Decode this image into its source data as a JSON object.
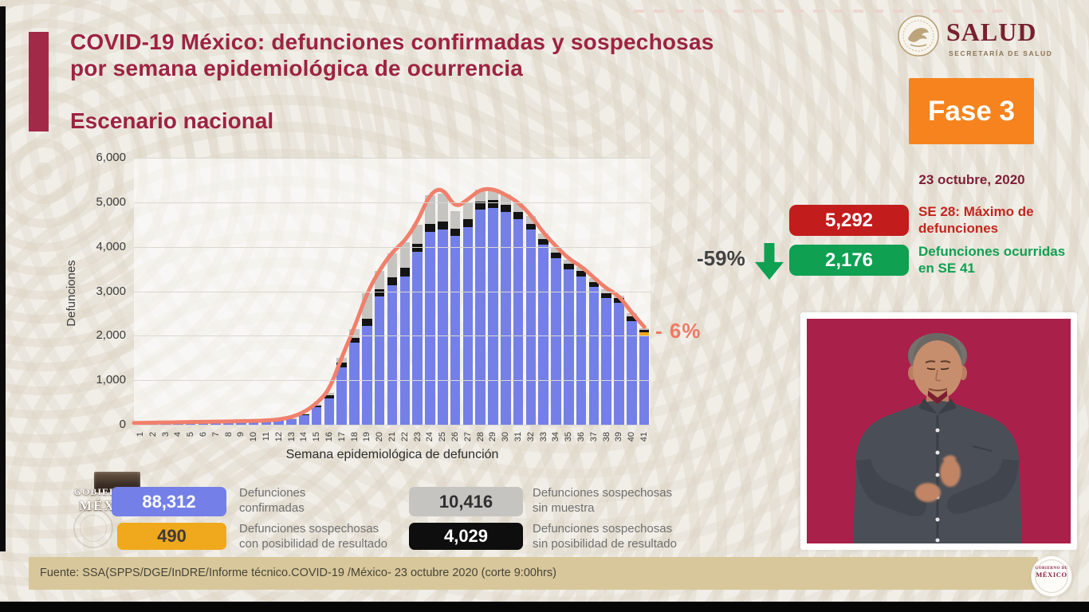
{
  "title": {
    "line1": "COVID-19 México: defunciones confirmadas y sospechosas",
    "line2": "por semana epidemiológica de ocurrencia",
    "section": "Escenario nacional"
  },
  "salud": {
    "wordmark": "SALUD",
    "sublabel": "SECRETARÍA DE SALUD"
  },
  "phase": {
    "label": "Fase 3",
    "date": "23 octubre, 2020"
  },
  "stats": {
    "max": {
      "value": "5,292",
      "label": "SE 28: Máximo de defunciones"
    },
    "current": {
      "value": "2,176",
      "label": "Defunciones ocurridas en SE 41"
    },
    "delta": "-59%",
    "annotation": "- 6%"
  },
  "chart_data": {
    "type": "stacked-bar+line",
    "title": "Defunciones confirmadas y sospechosas por semana epidemiológica de ocurrencia",
    "xlabel": "Semana epidemiológica de defunción",
    "ylabel": "Defunciones",
    "ylim": [
      0,
      6000
    ],
    "yticks": [
      "0",
      "1,000",
      "2,000",
      "3,000",
      "4,000",
      "5,000",
      "6,000"
    ],
    "grid": "horizontal",
    "legend_position": "bottom",
    "categories": [
      1,
      2,
      3,
      4,
      5,
      6,
      7,
      8,
      9,
      10,
      11,
      12,
      13,
      14,
      15,
      16,
      17,
      18,
      19,
      20,
      21,
      22,
      23,
      24,
      25,
      26,
      27,
      28,
      29,
      30,
      31,
      32,
      33,
      34,
      35,
      36,
      37,
      38,
      39,
      40,
      41
    ],
    "series": [
      {
        "name": "Defunciones confirmadas",
        "color": "#7480e8",
        "values": [
          30,
          35,
          40,
          45,
          50,
          55,
          55,
          60,
          65,
          70,
          75,
          85,
          130,
          230,
          400,
          600,
          1290,
          1840,
          2230,
          2890,
          3140,
          3330,
          3890,
          4330,
          4380,
          4240,
          4440,
          4830,
          4880,
          4780,
          4630,
          4380,
          4040,
          3740,
          3490,
          3340,
          3090,
          2840,
          2740,
          2330,
          2000
        ]
      },
      {
        "name": "Defunciones sospechosas con posibilidad de resultado",
        "color": "#f0a81c",
        "values": [
          0,
          0,
          0,
          0,
          0,
          0,
          0,
          0,
          0,
          0,
          0,
          0,
          0,
          0,
          0,
          0,
          0,
          0,
          0,
          0,
          0,
          0,
          0,
          0,
          0,
          0,
          0,
          0,
          0,
          0,
          0,
          0,
          0,
          0,
          0,
          0,
          0,
          0,
          0,
          0,
          76
        ]
      },
      {
        "name": "Defunciones sospechosas sin posibilidad de resultado",
        "color": "#141414",
        "values": [
          0,
          0,
          0,
          0,
          0,
          0,
          0,
          0,
          0,
          0,
          0,
          0,
          5,
          10,
          25,
          60,
          110,
          110,
          160,
          150,
          180,
          190,
          180,
          190,
          180,
          170,
          180,
          190,
          170,
          170,
          160,
          140,
          130,
          130,
          120,
          120,
          120,
          110,
          100,
          100,
          60
        ]
      },
      {
        "name": "Defunciones sospechosas sin muestra",
        "color": "#c6c4c1",
        "values": [
          5,
          5,
          5,
          5,
          5,
          5,
          10,
          10,
          10,
          10,
          15,
          15,
          15,
          20,
          35,
          60,
          100,
          200,
          560,
          410,
          530,
          580,
          430,
          630,
          640,
          390,
          380,
          272,
          230,
          230,
          210,
          180,
          130,
          130,
          90,
          90,
          90,
          100,
          60,
          70,
          40
        ]
      }
    ],
    "line": {
      "name": "Total de defunciones (curva suavizada)",
      "color": "#f0806c",
      "values": [
        40,
        45,
        50,
        55,
        60,
        65,
        70,
        75,
        80,
        85,
        95,
        115,
        170,
        280,
        480,
        780,
        1520,
        2190,
        2960,
        3480,
        3880,
        4130,
        4560,
        5200,
        5330,
        4870,
        5060,
        5292,
        5300,
        5170,
        5000,
        4710,
        4310,
        4010,
        3730,
        3560,
        3310,
        3060,
        2900,
        2520,
        2200
      ]
    }
  },
  "legend": {
    "items": [
      {
        "value": "88,312",
        "line1": "Defunciones",
        "line2": "confirmadas",
        "color": "#7480e8"
      },
      {
        "value": "490",
        "line1": "Defunciones sospechosas",
        "line2": "con posibilidad de resultado",
        "color": "#f0a81c"
      },
      {
        "value": "10,416",
        "line1": "Defunciones sospechosas",
        "line2": "sin muestra",
        "color": "#c6c4c1"
      },
      {
        "value": "4,029",
        "line1": "Defunciones sospechosas",
        "line2": "sin posibilidad de resultado",
        "color": "#0e0e0e"
      }
    ]
  },
  "gobierno": {
    "line1": "GOBIERNO DE",
    "line2": "MÉXICO"
  },
  "badge": {
    "line1": "GOBIERNO DE",
    "line2": "MÉXICO"
  },
  "footer": {
    "source": "Fuente: SSA(SPPS/DGE/InDRE/Informe técnico.COVID-19 /México- 23 octubre 2020 (corte 9:00hrs)"
  },
  "colors": {
    "accent_maroon": "#9d2342",
    "phase_orange": "#f6831e",
    "badge_red": "#c31c1c",
    "badge_green": "#0fa052",
    "bar_blue": "#7480e8",
    "bar_gray": "#c6c4c1",
    "bar_black": "#141414",
    "bar_orange": "#f0a81c",
    "trend_line": "#f0806c",
    "footer_tan": "#d8c79b",
    "interpreter_bg": "#a9204b"
  }
}
